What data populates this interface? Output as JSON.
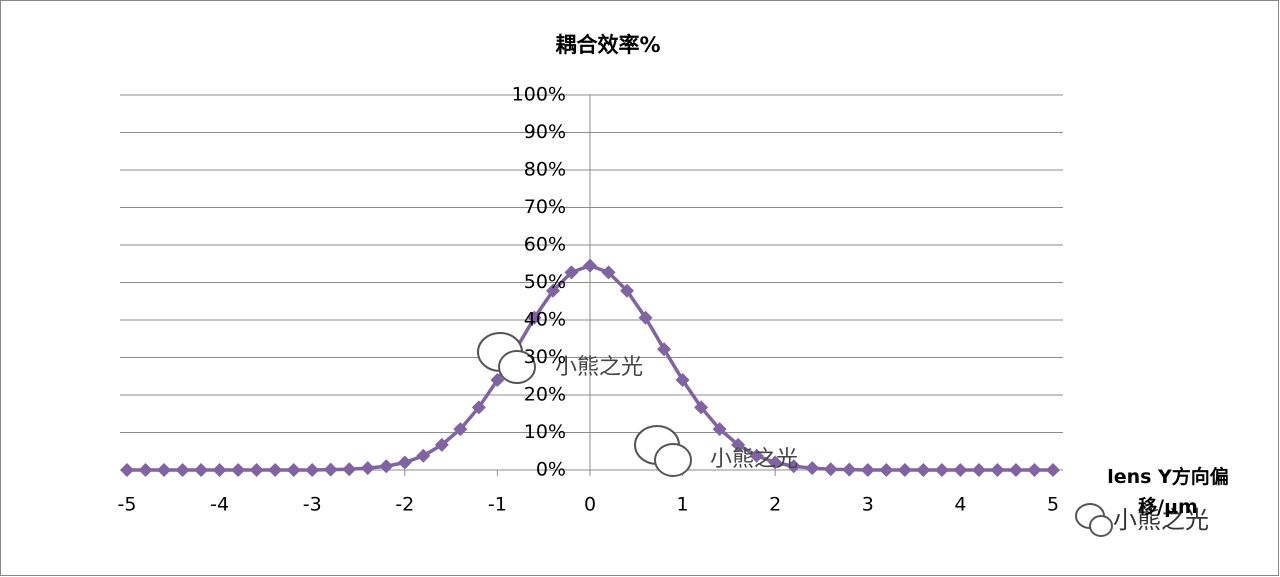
{
  "chart_data": {
    "type": "line",
    "title": "耦合效率%",
    "xlabel": "lens Y方向偏移/μm",
    "x": [
      -5,
      -4.8,
      -4.6,
      -4.4,
      -4.2,
      -4,
      -3.8,
      -3.6,
      -3.4,
      -3.2,
      -3,
      -2.8,
      -2.6,
      -2.4,
      -2.2,
      -2,
      -1.8,
      -1.6,
      -1.4,
      -1.2,
      -1,
      -0.8,
      -0.6,
      -0.4,
      -0.2,
      0,
      0.2,
      0.4,
      0.6,
      0.8,
      1,
      1.2,
      1.4,
      1.6,
      1.8,
      2,
      2.2,
      2.4,
      2.6,
      2.8,
      3,
      3.2,
      3.4,
      3.6,
      3.8,
      4,
      4.2,
      4.4,
      4.6,
      4.8,
      5
    ],
    "series": [
      {
        "name": "耦合效率%",
        "color": "#8064a2",
        "values": [
          0,
          0,
          0,
          0,
          0,
          0,
          0,
          0,
          0,
          0,
          0,
          0.1,
          0.2,
          0.5,
          1,
          2,
          3.8,
          6.7,
          10.9,
          16.7,
          24,
          32.2,
          40.6,
          47.8,
          52.7,
          54.5,
          52.7,
          47.8,
          40.6,
          32.2,
          24,
          16.7,
          10.9,
          6.7,
          3.8,
          2,
          1,
          0.5,
          0.2,
          0.1,
          0,
          0,
          0,
          0,
          0,
          0,
          0,
          0,
          0,
          0,
          0
        ]
      }
    ],
    "xlim": [
      -5,
      5
    ],
    "xticks": [
      -5,
      -4,
      -3,
      -2,
      -1,
      0,
      1,
      2,
      3,
      4,
      5
    ],
    "ylim": [
      0,
      100
    ],
    "yticks": [
      {
        "value": 0,
        "label": "0%"
      },
      {
        "value": 10,
        "label": "10%"
      },
      {
        "value": 20,
        "label": "20%"
      },
      {
        "value": 30,
        "label": "30%"
      },
      {
        "value": 40,
        "label": "40%"
      },
      {
        "value": 50,
        "label": "50%"
      },
      {
        "value": 60,
        "label": "60%"
      },
      {
        "value": 70,
        "label": "70%"
      },
      {
        "value": 80,
        "label": "80%"
      },
      {
        "value": 90,
        "label": "90%"
      },
      {
        "value": 100,
        "label": "100%"
      }
    ],
    "grid": true
  },
  "watermarks": [
    "小熊之光",
    "小熊之光",
    "小熊之光"
  ]
}
